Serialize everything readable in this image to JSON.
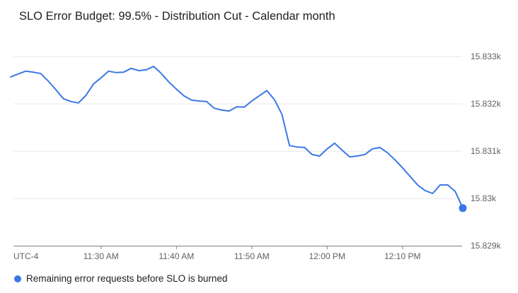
{
  "chart_data": {
    "type": "line",
    "title": "SLO Error Budget: 99.5% - Distribution Cut - Calendar month",
    "xlabel": "",
    "ylabel": "",
    "x_axis_timezone_label": "UTC-4",
    "x_ticks": [
      "11:30 AM",
      "11:40 AM",
      "11:50 AM",
      "12:00 PM",
      "12:10 PM"
    ],
    "x_tick_minutes": [
      690,
      700,
      710,
      720,
      730
    ],
    "xlim_minutes": [
      678,
      738
    ],
    "x_range": [
      "11:18 AM",
      "12:18 PM"
    ],
    "x_interval_minutes": 1,
    "y_ticks": [
      "15.833k",
      "15.832k",
      "15.831k",
      "15.83k",
      "15.829k"
    ],
    "y_tick_values": [
      15833,
      15832,
      15831,
      15830,
      15829
    ],
    "ylim": [
      15829,
      15833.1
    ],
    "grid": true,
    "legend_position": "bottom-left",
    "series": [
      {
        "name": "Remaining error requests before SLO is burned",
        "color": "#3b78e7",
        "endpoint_dot": true,
        "values": [
          15832.57,
          15832.63,
          15832.69,
          15832.67,
          15832.64,
          15832.48,
          15832.3,
          15832.11,
          15832.05,
          15832.02,
          15832.18,
          15832.42,
          15832.55,
          15832.69,
          15832.66,
          15832.67,
          15832.75,
          15832.7,
          15832.72,
          15832.79,
          15832.64,
          15832.46,
          15832.31,
          15832.17,
          15832.08,
          15832.06,
          15832.05,
          15831.91,
          15831.87,
          15831.85,
          15831.94,
          15831.93,
          15832.06,
          15832.17,
          15832.28,
          15832.09,
          15831.78,
          15831.12,
          15831.09,
          15831.08,
          15830.93,
          15830.9,
          15831.05,
          15831.17,
          15831.02,
          15830.88,
          15830.9,
          15830.93,
          15831.05,
          15831.08,
          15830.97,
          15830.82,
          15830.65,
          15830.47,
          15830.29,
          15830.17,
          15830.11,
          15830.29,
          15830.29,
          15830.15,
          15829.8
        ]
      }
    ],
    "colors": {
      "gridline": "#e7e7e7",
      "axis": "#808080",
      "tick_label": "#616161",
      "title_text": "#212121",
      "legend_text": "#212121"
    }
  }
}
